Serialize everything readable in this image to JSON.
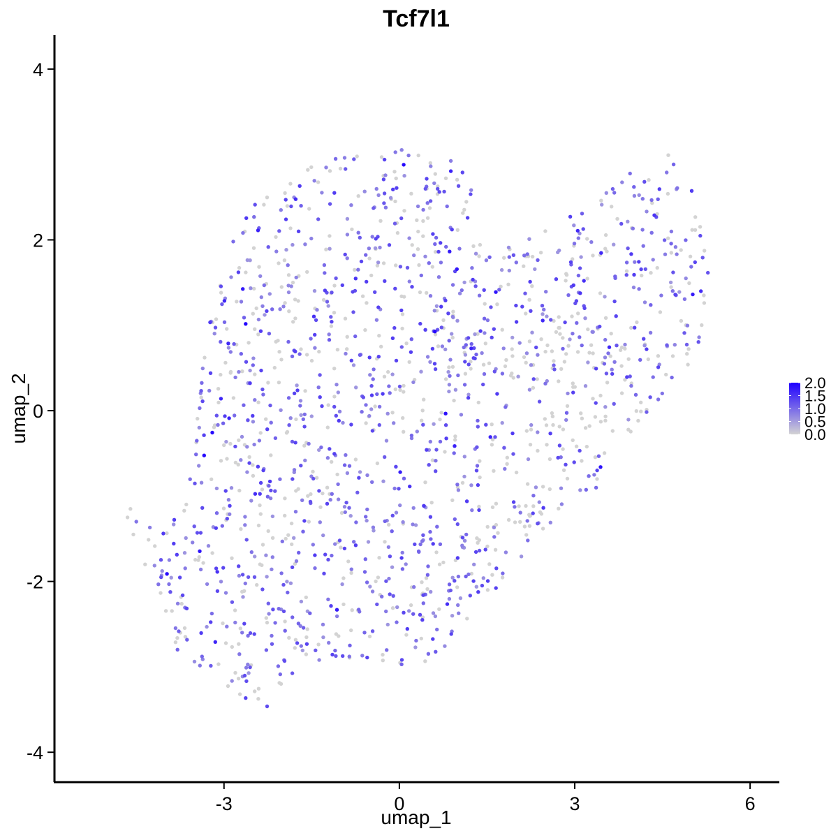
{
  "chart_data": {
    "type": "scatter",
    "title": "Tcf7l1",
    "xlabel": "umap_1",
    "ylabel": "umap_2",
    "xlim": [
      -5.9,
      6.5
    ],
    "ylim": [
      -4.35,
      4.4
    ],
    "x_ticks": [
      "-3",
      "0",
      "3",
      "6"
    ],
    "x_tick_values": [
      -3,
      0,
      3,
      6
    ],
    "y_ticks": [
      "-4",
      "-2",
      "0",
      "2",
      "4"
    ],
    "y_tick_values": [
      -4,
      -2,
      0,
      2,
      4
    ],
    "grid": false,
    "legend": {
      "position": "right",
      "type": "colorbar",
      "labels": [
        "2.0",
        "1.5",
        "1.0",
        "0.5",
        "0.0"
      ],
      "values": [
        2.0,
        1.5,
        1.0,
        0.5,
        0.0
      ],
      "low_color": "#d3d3d3",
      "high_color": "#1e00ff"
    },
    "expression_range": [
      0,
      2.0
    ],
    "n_points": 1600
  }
}
